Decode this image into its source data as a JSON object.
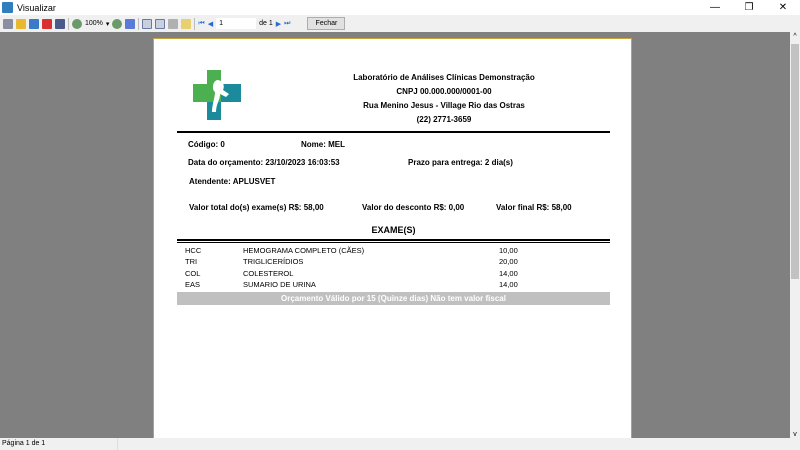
{
  "window": {
    "title": "Visualizar",
    "minimize": "—",
    "restore": "❐",
    "close": "✕"
  },
  "toolbar": {
    "zoom": "100%",
    "page": "1",
    "of_label": "de 1",
    "close_label": "Fechar",
    "icons": [
      "print-icon",
      "open-icon",
      "save-icon",
      "pdf-icon",
      "find-icon",
      "zoom-in-icon",
      "zoom-out-icon",
      "page-width-icon",
      "single-page-icon",
      "two-page-icon",
      "settings-icon",
      "edit-icon",
      "first-page-icon",
      "prev-page-icon",
      "next-page-icon",
      "last-page-icon"
    ]
  },
  "report": {
    "lab_name": "Laboratório de Análises Clínicas Demonstração",
    "cnpj": "CNPJ 00.000.000/0001-00",
    "address": "Rua Menino Jesus - Village Rio das Ostras",
    "phone": "(22) 2771-3659",
    "codigo": "Código: 0",
    "nome": "Nome: MEL",
    "data": "Data do orçamento: 23/10/2023 16:03:53",
    "prazo": "Prazo para entrega: 2 dia(s)",
    "atendente": "Atendente: APLUSVET",
    "total": "Valor total do(s) exame(s) R$: 58,00",
    "desconto": "Valor do desconto R$: 0,00",
    "final": "Valor final R$: 58,00",
    "exames_title": "EXAME(S)",
    "exames": [
      {
        "code": "HCC",
        "name": "HEMOGRAMA COMPLETO (CÃES)",
        "value": "10,00"
      },
      {
        "code": "TRI",
        "name": "TRIGLICERÍDIOS",
        "value": "20,00"
      },
      {
        "code": "COL",
        "name": "COLESTEROL",
        "value": "14,00"
      },
      {
        "code": "EAS",
        "name": "SUMARIO DE URINA",
        "value": "14,00"
      }
    ],
    "footer": "Orçamento Válido por 15 (Quinze dias) Não tem valor fiscal"
  },
  "status": {
    "page": "Página 1 de 1"
  },
  "colors": {
    "green": "#4cb050",
    "teal": "#1b8a9a",
    "viewer_bg": "#808080",
    "page_border": "#c8a33a"
  }
}
